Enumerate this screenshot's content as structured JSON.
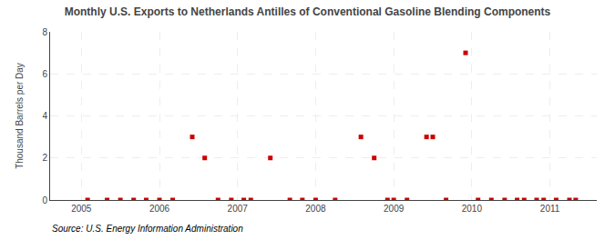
{
  "chart_data": {
    "type": "scatter",
    "title": "Monthly U.S. Exports to Netherlands Antilles of Conventional Gasoline Blending Components",
    "ylabel": "Thousand Barrels per Day",
    "annotations": [
      "Source: U.S. Energy Information Administration"
    ],
    "color": "#cc0000",
    "marker": "square",
    "grid": true,
    "xlim": [
      2004.6,
      2011.6
    ],
    "xticks": [
      2005,
      2006,
      2007,
      2008,
      2009,
      2010,
      2011
    ],
    "ylim": [
      0,
      8
    ],
    "yticks": [
      0,
      2,
      4,
      6,
      8
    ],
    "x": [
      2005.08,
      2005.33,
      2005.5,
      2005.67,
      2005.83,
      2006.0,
      2006.17,
      2006.42,
      2006.58,
      2006.75,
      2006.92,
      2007.08,
      2007.17,
      2007.42,
      2007.67,
      2007.83,
      2008.0,
      2008.25,
      2008.58,
      2008.75,
      2008.92,
      2009.0,
      2009.17,
      2009.42,
      2009.5,
      2009.67,
      2009.92,
      2010.08,
      2010.25,
      2010.42,
      2010.58,
      2010.67,
      2010.83,
      2010.92,
      2011.08,
      2011.25,
      2011.33
    ],
    "values": [
      0.0,
      0.0,
      0.0,
      0.0,
      0.0,
      0.0,
      0.0,
      3.0,
      2.0,
      0.0,
      0.0,
      0.0,
      0.0,
      2.0,
      0.0,
      0.0,
      0.0,
      0.0,
      3.0,
      2.0,
      0.0,
      0.0,
      0.0,
      3.0,
      3.0,
      0.0,
      7.0,
      0.0,
      0.0,
      0.0,
      0.0,
      0.0,
      0.0,
      0.0,
      0.0,
      0.0,
      0.0
    ]
  }
}
